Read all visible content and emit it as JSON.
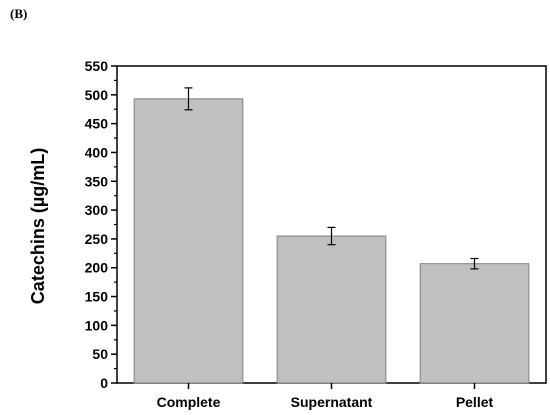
{
  "panel_label": "(B)",
  "chart_data": {
    "type": "bar",
    "title": "",
    "xlabel": "",
    "ylabel": "Catechins (µg/mL)",
    "ylim": [
      0,
      550
    ],
    "yticks": [
      0,
      50,
      100,
      150,
      200,
      250,
      300,
      350,
      400,
      450,
      500,
      550
    ],
    "categories": [
      "Complete",
      "Supernatant",
      "Pellet"
    ],
    "values": [
      493,
      255,
      207
    ],
    "errors": [
      19,
      15,
      9
    ],
    "bar_color": "#c0c0c0",
    "bar_edge_color": "#808080",
    "grid": false,
    "legend": "none"
  }
}
